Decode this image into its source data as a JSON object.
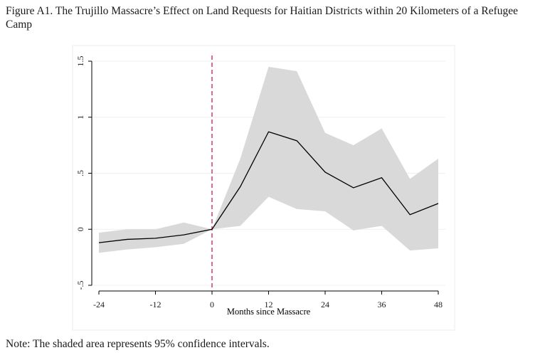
{
  "figure": {
    "title": "Figure A1. The Trujillo Massacre’s Effect on Land Requests for Haitian Districts within 20 Kilometers of a Refugee Camp",
    "note": "Note: The shaded area represents 95% confidence intervals."
  },
  "chart_data": {
    "type": "line",
    "title": "Figure A1. The Trujillo Massacre’s Effect on Land Requests for Haitian Districts within 20 Kilometers of a Refugee Camp",
    "xlabel": "Months since Massacre",
    "ylabel": "",
    "xlim": [
      -24,
      48
    ],
    "ylim": [
      -0.5,
      1.5
    ],
    "xticks": [
      -24,
      -12,
      0,
      12,
      24,
      36,
      48
    ],
    "xtick_labels": [
      "-24",
      "-12",
      "0",
      "12",
      "24",
      "36",
      "48"
    ],
    "yticks": [
      -0.5,
      0,
      0.5,
      1,
      1.5
    ],
    "ytick_labels": [
      "-.5",
      "0",
      ".5",
      "1",
      "1.5"
    ],
    "grid": true,
    "event_line": {
      "x": 0,
      "color": "#d6457a",
      "style": "dashed"
    },
    "x": [
      -24,
      -18,
      -12,
      -6,
      0,
      6,
      12,
      18,
      24,
      30,
      36,
      42,
      48
    ],
    "series": [
      {
        "values": [
          -0.12,
          -0.09,
          -0.08,
          -0.05,
          0,
          0.38,
          0.87,
          0.79,
          0.51,
          0.37,
          0.46,
          0.13,
          0.23
        ],
        "color": "#000000"
      }
    ],
    "ci_lower": [
      -0.21,
      -0.18,
      -0.16,
      -0.13,
      0,
      0.03,
      0.29,
      0.18,
      0.16,
      -0.01,
      0.03,
      -0.19,
      -0.17
    ],
    "ci_upper": [
      -0.03,
      0.0,
      0.0,
      0.06,
      0,
      0.63,
      1.45,
      1.41,
      0.86,
      0.75,
      0.9,
      0.45,
      0.63
    ],
    "band_color": "#d9d9d9",
    "note": "Note: The shaded area represents 95% confidence intervals."
  }
}
